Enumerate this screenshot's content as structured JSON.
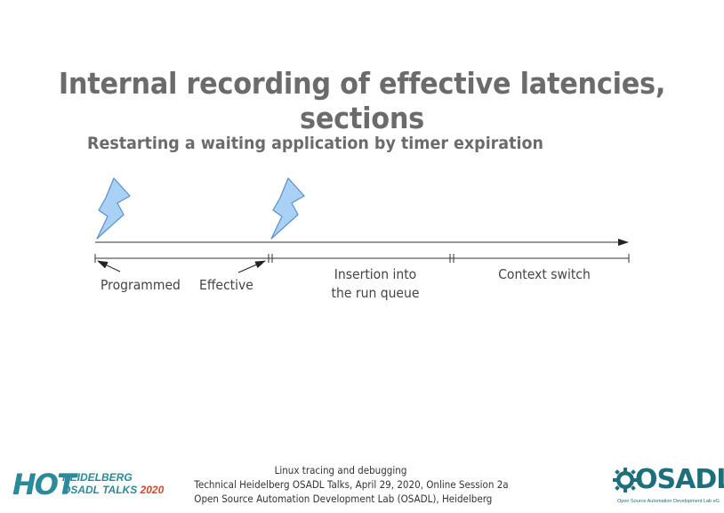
{
  "slide": {
    "title": "Internal recording of effective latencies, sections",
    "subtitle": "Restarting a waiting application by timer expiration"
  },
  "diagram": {
    "labels": {
      "programmed": "Programmed",
      "effective": "Effective",
      "insertion_line1": "Insertion into",
      "insertion_line2": "the run queue",
      "context_switch": "Context switch"
    },
    "icons": [
      "lightning-bolt-icon",
      "lightning-bolt-icon"
    ],
    "colors": {
      "bolt_fill": "#a9d1f5",
      "bolt_stroke": "#5b8fc9",
      "line": "#333333"
    }
  },
  "footer": {
    "line1": "Linux tracing and debugging",
    "line2": "Technical Heidelberg OSADL Talks, April 29, 2020, Online Session 2a",
    "line3": "Open Source Automation Development Lab (OSADL), Heidelberg"
  },
  "logos": {
    "hot": {
      "big": "HOT",
      "line1": "HEIDELBERG",
      "line2": "OSADL TALKS",
      "year": "2020"
    },
    "osadl": {
      "name": "OSADL",
      "tagline": "Open Source Automation Development Lab eG"
    }
  }
}
